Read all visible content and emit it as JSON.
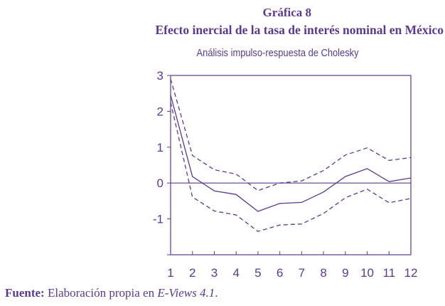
{
  "header": {
    "title_line1": "Gráfica 8",
    "title_line2": "Efecto inercial de la tasa de interés nominal en México"
  },
  "footer": {
    "source_label": "Fuente:",
    "source_text_before": " Elaboración propia en ",
    "source_software": "E-Views 4.1",
    "source_text_after": "."
  },
  "colors": {
    "line": "#5b3a8c",
    "text": "#5b3a8c"
  },
  "chart_data": {
    "type": "line",
    "title": "Análisis impulso-respuesta de Cholesky",
    "xlabel": "",
    "ylabel": "",
    "x": [
      1,
      2,
      3,
      4,
      5,
      6,
      7,
      8,
      9,
      10,
      11,
      12
    ],
    "x_tick_labels": [
      "1",
      "2",
      "3",
      "4",
      "5",
      "6",
      "7",
      "8",
      "9",
      "10",
      "11",
      "12"
    ],
    "y_tick_labels": [
      "3",
      "2",
      "1",
      "0",
      "-1"
    ],
    "ylim": [
      -2,
      3
    ],
    "grid": false,
    "zero_line": true,
    "series": [
      {
        "style": "solid",
        "values": [
          2.45,
          0.18,
          -0.22,
          -0.32,
          -0.79,
          -0.57,
          -0.54,
          -0.25,
          0.18,
          0.4,
          0.04,
          0.14
        ]
      },
      {
        "style": "dashed",
        "values": [
          2.9,
          0.77,
          0.37,
          0.25,
          -0.21,
          0.0,
          0.06,
          0.35,
          0.78,
          0.98,
          0.63,
          0.71
        ]
      },
      {
        "style": "dashed",
        "values": [
          2.25,
          -0.39,
          -0.78,
          -0.89,
          -1.35,
          -1.17,
          -1.14,
          -0.85,
          -0.41,
          -0.17,
          -0.55,
          -0.43
        ]
      }
    ]
  }
}
